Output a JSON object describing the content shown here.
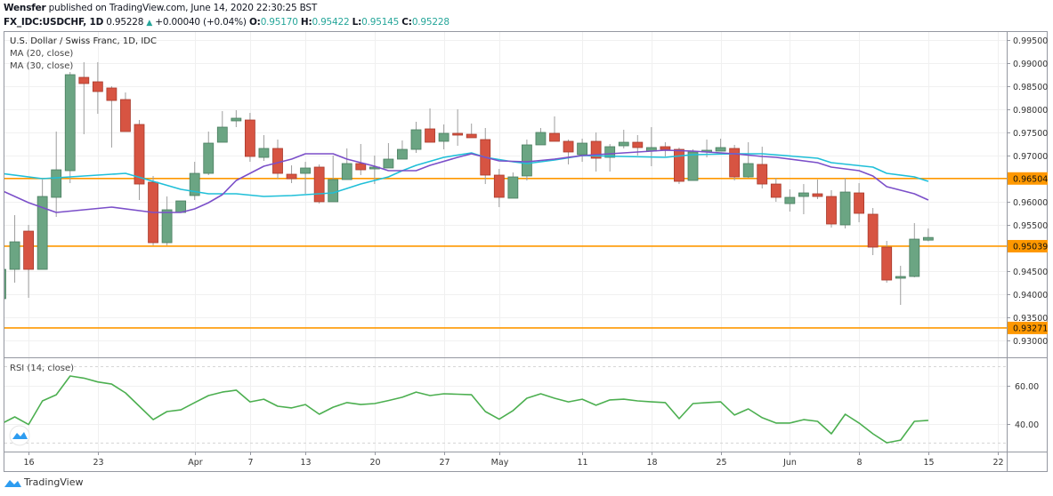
{
  "header": {
    "author": "Wensfer",
    "published": "published on TradingView.com, June 14, 2020 22:30:25 BST",
    "symbol": "FX_IDC:USDCHF, 1D",
    "last": "0.95228",
    "change": "+0.00040 (+0.04%)",
    "o_label": "O:",
    "o": "0.95170",
    "h_label": "H:",
    "h": "0.95422",
    "l_label": "L:",
    "l": "0.95145",
    "c_label": "C:",
    "c": "0.95228"
  },
  "footer": {
    "brand": "TradingView"
  },
  "colors": {
    "up": "#6ba583",
    "down": "#d75442",
    "level": "#ff9800",
    "ma20": "#7b4fc9",
    "ma30": "#1fbfd8",
    "rsi": "#4caf50"
  },
  "chart_data": {
    "type": "candlestick",
    "title": "U.S. Dollar / Swiss Franc, 1D, IDC",
    "legend": [
      "MA (20, close)",
      "MA (30, close)"
    ],
    "rsi_label": "RSI (14, close)",
    "ylim": [
      0.927,
      0.998
    ],
    "y_ticks": [
      "0.99500",
      "0.99000",
      "0.98500",
      "0.98000",
      "0.97500",
      "0.97000",
      "0.96000",
      "0.95500",
      "0.94500",
      "0.94000",
      "0.93500",
      "0.93000"
    ],
    "levels": [
      "0.96504",
      "0.95039",
      "0.93271"
    ],
    "x_ticks": [
      {
        "label": "16",
        "date": "2020-03-16"
      },
      {
        "label": "23",
        "date": "2020-03-23"
      },
      {
        "label": "Apr",
        "date": "2020-04-01"
      },
      {
        "label": "7",
        "date": "2020-04-07"
      },
      {
        "label": "13",
        "date": "2020-04-13"
      },
      {
        "label": "20",
        "date": "2020-04-20"
      },
      {
        "label": "27",
        "date": "2020-04-27"
      },
      {
        "label": "May",
        "date": "2020-05-01"
      },
      {
        "label": "11",
        "date": "2020-05-11"
      },
      {
        "label": "18",
        "date": "2020-05-18"
      },
      {
        "label": "25",
        "date": "2020-05-25"
      },
      {
        "label": "Jun",
        "date": "2020-06-01"
      },
      {
        "label": "8",
        "date": "2020-06-08"
      },
      {
        "label": "15",
        "date": "2020-06-15"
      },
      {
        "label": "22",
        "date": "2020-06-22"
      }
    ],
    "candles_columns": [
      "date",
      "open",
      "high",
      "low",
      "close"
    ],
    "candles": [
      [
        "2020-03-12",
        0.93904,
        0.94596,
        0.93865,
        0.94538
      ],
      [
        "2020-03-13",
        0.94538,
        0.95711,
        0.9425,
        0.95134
      ],
      [
        "2020-03-16",
        0.95365,
        0.955,
        0.93923,
        0.94538
      ],
      [
        "2020-03-17",
        0.94538,
        0.96481,
        0.94538,
        0.96115
      ],
      [
        "2020-03-18",
        0.96096,
        0.97519,
        0.95673,
        0.96692
      ],
      [
        "2020-03-19",
        0.96673,
        0.98808,
        0.96404,
        0.9875
      ],
      [
        "2020-03-20",
        0.98692,
        0.99019,
        0.97461,
        0.98558
      ],
      [
        "2020-03-23",
        0.98596,
        0.99019,
        0.97904,
        0.98385
      ],
      [
        "2020-03-24",
        0.98462,
        0.985,
        0.97173,
        0.98192
      ],
      [
        "2020-03-25",
        0.98212,
        0.98365,
        0.97519,
        0.97519
      ],
      [
        "2020-03-26",
        0.97673,
        0.97769,
        0.96038,
        0.96384
      ],
      [
        "2020-03-27",
        0.96423,
        0.96558,
        0.95057,
        0.95115
      ],
      [
        "2020-03-30",
        0.95115,
        0.96115,
        0.95057,
        0.95827
      ],
      [
        "2020-03-31",
        0.95769,
        0.96019,
        0.95769,
        0.96019
      ],
      [
        "2020-04-01",
        0.96135,
        0.96865,
        0.96038,
        0.96615
      ],
      [
        "2020-04-02",
        0.96615,
        0.97519,
        0.96577,
        0.97269
      ],
      [
        "2020-04-03",
        0.97288,
        0.97962,
        0.97288,
        0.97615
      ],
      [
        "2020-04-06",
        0.9775,
        0.97981,
        0.97615,
        0.97808
      ],
      [
        "2020-04-07",
        0.97769,
        0.97923,
        0.96865,
        0.96981
      ],
      [
        "2020-04-08",
        0.96961,
        0.97442,
        0.96884,
        0.97154
      ],
      [
        "2020-04-09",
        0.97154,
        0.97346,
        0.965,
        0.96615
      ],
      [
        "2020-04-10",
        0.96596,
        0.96788,
        0.96404,
        0.965
      ],
      [
        "2020-04-13",
        0.96615,
        0.96865,
        0.96173,
        0.96731
      ],
      [
        "2020-04-14",
        0.9675,
        0.96808,
        0.95961,
        0.96
      ],
      [
        "2020-04-15",
        0.96,
        0.97,
        0.96,
        0.96481
      ],
      [
        "2020-04-16",
        0.96481,
        0.97154,
        0.96481,
        0.96827
      ],
      [
        "2020-04-17",
        0.96827,
        0.9725,
        0.96577,
        0.96692
      ],
      [
        "2020-04-20",
        0.96711,
        0.97,
        0.96384,
        0.9675
      ],
      [
        "2020-04-21",
        0.96731,
        0.97269,
        0.96731,
        0.96923
      ],
      [
        "2020-04-22",
        0.96923,
        0.97327,
        0.96923,
        0.97134
      ],
      [
        "2020-04-23",
        0.97134,
        0.97731,
        0.97058,
        0.97558
      ],
      [
        "2020-04-24",
        0.97577,
        0.98019,
        0.97288,
        0.97288
      ],
      [
        "2020-04-27",
        0.97308,
        0.97673,
        0.97134,
        0.97481
      ],
      [
        "2020-04-28",
        0.97481,
        0.98,
        0.97211,
        0.97442
      ],
      [
        "2020-04-29",
        0.97461,
        0.97692,
        0.97385,
        0.97385
      ],
      [
        "2020-04-30",
        0.97346,
        0.97596,
        0.96384,
        0.96577
      ],
      [
        "2020-05-01",
        0.96577,
        0.96711,
        0.95884,
        0.96096
      ],
      [
        "2020-05-04",
        0.96077,
        0.96634,
        0.96077,
        0.96538
      ],
      [
        "2020-05-05",
        0.96558,
        0.97346,
        0.96461,
        0.97231
      ],
      [
        "2020-05-06",
        0.97231,
        0.97596,
        0.97231,
        0.975
      ],
      [
        "2020-05-07",
        0.97481,
        0.97846,
        0.97308,
        0.97308
      ],
      [
        "2020-05-08",
        0.97308,
        0.97346,
        0.96808,
        0.97077
      ],
      [
        "2020-05-11",
        0.97019,
        0.97365,
        0.96865,
        0.97269
      ],
      [
        "2020-05-12",
        0.97308,
        0.975,
        0.96654,
        0.96942
      ],
      [
        "2020-05-13",
        0.96961,
        0.9725,
        0.96654,
        0.97192
      ],
      [
        "2020-05-14",
        0.97211,
        0.97558,
        0.97154,
        0.97288
      ],
      [
        "2020-05-15",
        0.97288,
        0.97442,
        0.97,
        0.97173
      ],
      [
        "2020-05-18",
        0.97096,
        0.97615,
        0.96769,
        0.97173
      ],
      [
        "2020-05-19",
        0.97192,
        0.97288,
        0.96981,
        0.97134
      ],
      [
        "2020-05-20",
        0.97134,
        0.97173,
        0.96384,
        0.96442
      ],
      [
        "2020-05-21",
        0.96461,
        0.97134,
        0.96461,
        0.97077
      ],
      [
        "2020-05-22",
        0.97077,
        0.97346,
        0.96961,
        0.97115
      ],
      [
        "2020-05-25",
        0.97096,
        0.97365,
        0.97096,
        0.97173
      ],
      [
        "2020-05-26",
        0.97154,
        0.97231,
        0.96461,
        0.96538
      ],
      [
        "2020-05-27",
        0.96538,
        0.97288,
        0.96519,
        0.96827
      ],
      [
        "2020-05-28",
        0.96808,
        0.97192,
        0.96288,
        0.96384
      ],
      [
        "2020-05-29",
        0.96384,
        0.96519,
        0.96,
        0.96096
      ],
      [
        "2020-06-01",
        0.95961,
        0.96269,
        0.95788,
        0.96096
      ],
      [
        "2020-06-02",
        0.96115,
        0.96384,
        0.95731,
        0.96192
      ],
      [
        "2020-06-03",
        0.96173,
        0.96481,
        0.96058,
        0.96115
      ],
      [
        "2020-06-04",
        0.96115,
        0.9625,
        0.95442,
        0.95519
      ],
      [
        "2020-06-05",
        0.955,
        0.96519,
        0.95423,
        0.96211
      ],
      [
        "2020-06-08",
        0.96192,
        0.96404,
        0.95557,
        0.9575
      ],
      [
        "2020-06-09",
        0.95731,
        0.95865,
        0.94846,
        0.95019
      ],
      [
        "2020-06-10",
        0.95019,
        0.95154,
        0.9425,
        0.94307
      ],
      [
        "2020-06-11",
        0.94346,
        0.94615,
        0.93769,
        0.94384
      ],
      [
        "2020-06-12",
        0.94384,
        0.95538,
        0.94365,
        0.95192
      ],
      [
        "2020-06-15",
        0.9517,
        0.95422,
        0.95145,
        0.95228
      ]
    ],
    "ma20": [
      [
        "2020-03-12",
        0.9625
      ],
      [
        "2020-03-16",
        0.95981
      ],
      [
        "2020-03-18",
        0.95769
      ],
      [
        "2020-03-24",
        0.95884
      ],
      [
        "2020-03-27",
        0.95769
      ],
      [
        "2020-03-31",
        0.95769
      ],
      [
        "2020-04-01",
        0.95846
      ],
      [
        "2020-04-02",
        0.95981
      ],
      [
        "2020-04-03",
        0.96154
      ],
      [
        "2020-04-06",
        0.96461
      ],
      [
        "2020-04-08",
        0.96769
      ],
      [
        "2020-04-10",
        0.96923
      ],
      [
        "2020-04-13",
        0.97038
      ],
      [
        "2020-04-15",
        0.97038
      ],
      [
        "2020-04-16",
        0.96923
      ],
      [
        "2020-04-20",
        0.96769
      ],
      [
        "2020-04-21",
        0.96673
      ],
      [
        "2020-04-23",
        0.96673
      ],
      [
        "2020-04-24",
        0.96788
      ],
      [
        "2020-04-28",
        0.96961
      ],
      [
        "2020-04-29",
        0.97038
      ],
      [
        "2020-04-30",
        0.96961
      ],
      [
        "2020-05-01",
        0.96884
      ],
      [
        "2020-05-05",
        0.96865
      ],
      [
        "2020-05-07",
        0.96923
      ],
      [
        "2020-05-11",
        0.97
      ],
      [
        "2020-05-14",
        0.97058
      ],
      [
        "2020-05-19",
        0.97115
      ],
      [
        "2020-05-21",
        0.97096
      ],
      [
        "2020-05-26",
        0.97038
      ],
      [
        "2020-05-28",
        0.96981
      ],
      [
        "2020-05-29",
        0.96961
      ],
      [
        "2020-06-03",
        0.96846
      ],
      [
        "2020-06-04",
        0.9675
      ],
      [
        "2020-06-08",
        0.96673
      ],
      [
        "2020-06-09",
        0.96558
      ],
      [
        "2020-06-10",
        0.96327
      ],
      [
        "2020-06-12",
        0.96173
      ],
      [
        "2020-06-15",
        0.96038
      ]
    ],
    "ma30": [
      [
        "2020-03-12",
        0.96615
      ],
      [
        "2020-03-17",
        0.965
      ],
      [
        "2020-03-24",
        0.96596
      ],
      [
        "2020-03-25",
        0.96615
      ],
      [
        "2020-03-27",
        0.96442
      ],
      [
        "2020-03-31",
        0.96269
      ],
      [
        "2020-04-02",
        0.96173
      ],
      [
        "2020-04-06",
        0.96173
      ],
      [
        "2020-04-08",
        0.96115
      ],
      [
        "2020-04-10",
        0.96135
      ],
      [
        "2020-04-15",
        0.96192
      ],
      [
        "2020-04-16",
        0.96288
      ],
      [
        "2020-04-17",
        0.96384
      ],
      [
        "2020-04-21",
        0.96538
      ],
      [
        "2020-04-22",
        0.96673
      ],
      [
        "2020-04-23",
        0.96788
      ],
      [
        "2020-04-27",
        0.96961
      ],
      [
        "2020-04-29",
        0.97058
      ],
      [
        "2020-04-30",
        0.96961
      ],
      [
        "2020-05-04",
        0.96865
      ],
      [
        "2020-05-05",
        0.96827
      ],
      [
        "2020-05-07",
        0.96904
      ],
      [
        "2020-05-11",
        0.97
      ],
      [
        "2020-05-14",
        0.96981
      ],
      [
        "2020-05-19",
        0.96961
      ],
      [
        "2020-05-21",
        0.97019
      ],
      [
        "2020-05-26",
        0.97038
      ],
      [
        "2020-05-28",
        0.97038
      ],
      [
        "2020-06-03",
        0.96942
      ],
      [
        "2020-06-04",
        0.96846
      ],
      [
        "2020-06-09",
        0.9675
      ],
      [
        "2020-06-10",
        0.96615
      ],
      [
        "2020-06-12",
        0.96538
      ],
      [
        "2020-06-15",
        0.96442
      ]
    ],
    "rsi": [
      40.0,
      43.7,
      39.7,
      52.1,
      55.3,
      65.1,
      64.0,
      62.0,
      60.9,
      56.3,
      49.3,
      42.3,
      46.5,
      47.4,
      51.2,
      54.9,
      56.7,
      57.7,
      51.6,
      53.0,
      49.3,
      48.4,
      50.2,
      45.1,
      48.8,
      51.2,
      50.2,
      50.7,
      52.3,
      54.0,
      56.7,
      54.9,
      55.8,
      55.6,
      55.3,
      46.5,
      42.5,
      47.0,
      53.5,
      55.8,
      53.5,
      51.6,
      53.0,
      49.8,
      52.6,
      53.0,
      52.1,
      51.6,
      51.2,
      42.8,
      50.7,
      51.2,
      51.6,
      44.7,
      47.9,
      43.3,
      40.5,
      40.5,
      42.3,
      41.4,
      34.9,
      45.1,
      40.5,
      34.9,
      30.2,
      31.6,
      41.4,
      41.9
    ],
    "rsi_ticks": [
      "60.00",
      "40.00"
    ],
    "rsi_bands": [
      70,
      30
    ],
    "grid": true
  }
}
